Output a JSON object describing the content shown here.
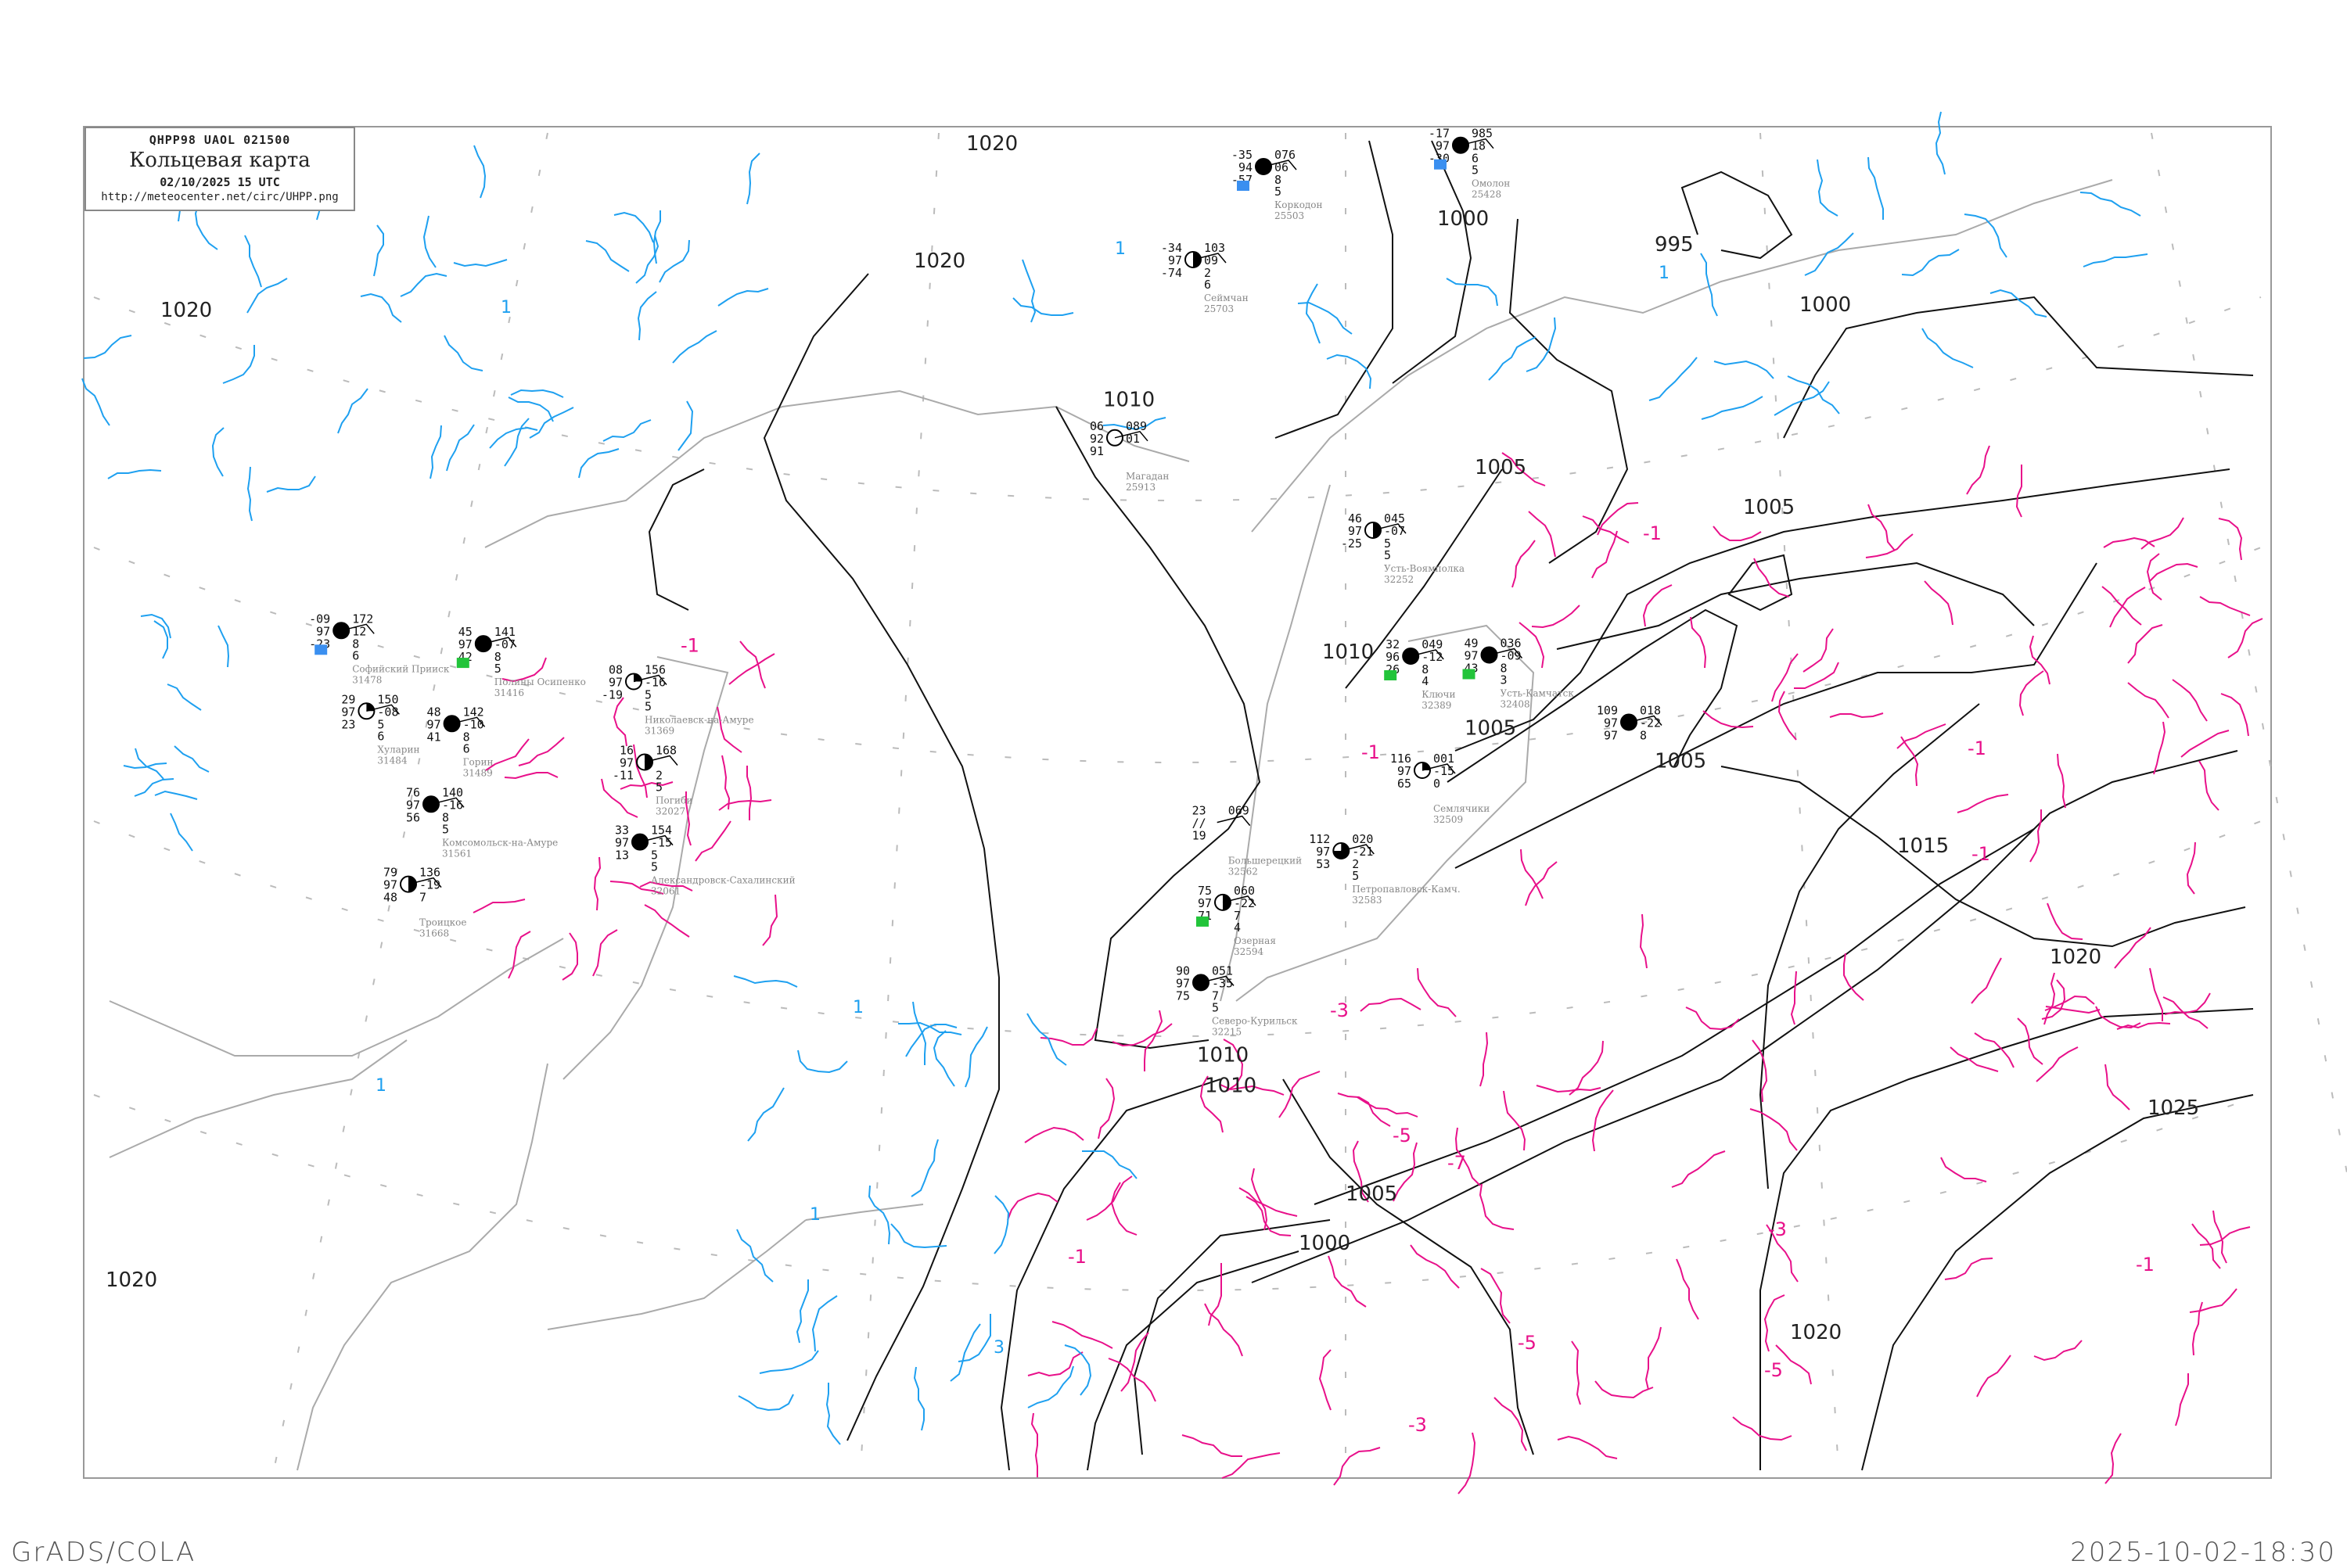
{
  "header": {
    "bulletin_code": "QHPP98  UAOL  021500",
    "title": "Кольцевая карта",
    "datetime": "02/10/2025 15 UTC",
    "url": "http://meteocenter.net/circ/UHPP.png"
  },
  "footer": {
    "software": "GrADS/COLA",
    "timestamp": "2025-10-02-18:30"
  },
  "colors": {
    "isobar": "#000000",
    "temperature_isoline": "#e8108a",
    "positive_isoline": "#1ea0f0",
    "coastline": "#aaaaaa",
    "grid": "#aaaaaa",
    "snow_marker": "#3a8ff0",
    "rain_marker": "#22c43a"
  },
  "isobar_labels": [
    "1020",
    "1020",
    "1020",
    "1010",
    "1010",
    "1010",
    "1010",
    "1000",
    "1000",
    "995",
    "1000",
    "1005",
    "1005",
    "1005",
    "1005",
    "1005",
    "1015",
    "1020",
    "1020",
    "1020",
    "1025"
  ],
  "temperature_labels": [
    "-1",
    "-1",
    "-1",
    "-1",
    "-1",
    "-3",
    "-3",
    "-3",
    "-5",
    "-5",
    "-5",
    "-7",
    "-1",
    "-1"
  ],
  "positive_labels": [
    "1",
    "1",
    "1",
    "1",
    "1",
    "1",
    "3"
  ],
  "stations": [
    {
      "name": "Коркодон",
      "id": "25503",
      "tl": "-35",
      "ml": "94",
      "bl": "-57",
      "tr": "076",
      "mr": "06",
      "b1": "8",
      "b2": "5",
      "cover": "full",
      "marker": "snow"
    },
    {
      "name": "Омолон",
      "id": "25428",
      "tl": "-17",
      "ml": "97",
      "bl": "-30",
      "tr": "985",
      "mr": "18",
      "b1": "6",
      "b2": "5",
      "cover": "full",
      "marker": "snow"
    },
    {
      "name": "Сеймчан",
      "id": "25703",
      "tl": "-34",
      "ml": "97",
      "bl": "-74",
      "tr": "103",
      "mr": "09",
      "b1": "2",
      "b2": "6",
      "cover": "half",
      "marker": ""
    },
    {
      "name": "Магадан",
      "id": "25913",
      "tl": "06",
      "ml": "92",
      "bl": "91",
      "tr": "089",
      "mr": "01",
      "b1": "",
      "b2": "",
      "cover": "empty",
      "marker": ""
    },
    {
      "name": "Усть-Воямполка",
      "id": "32252",
      "tl": "46",
      "ml": "97",
      "bl": "-25",
      "tr": "045",
      "mr": "-07",
      "b1": "5",
      "b2": "5",
      "cover": "half",
      "marker": ""
    },
    {
      "name": "Ключи",
      "id": "32389",
      "tl": "32",
      "ml": "96",
      "bl": "26",
      "tr": "049",
      "mr": "-12",
      "b1": "8",
      "b2": "4",
      "cover": "full",
      "marker": "rain"
    },
    {
      "name": "Усть-Камчатск",
      "id": "32408",
      "tl": "49",
      "ml": "97",
      "bl": "43",
      "tr": "036",
      "mr": "-09",
      "b1": "8",
      "b2": "3",
      "cover": "full",
      "marker": "rain"
    },
    {
      "name": "Софийский Прииск",
      "id": "31478",
      "tl": "-09",
      "ml": "97",
      "bl": "-23",
      "tr": "172",
      "mr": "12",
      "b1": "8",
      "b2": "6",
      "cover": "full",
      "marker": "snow"
    },
    {
      "name": "Полины Осипенко",
      "id": "31416",
      "tl": "45",
      "ml": "97",
      "bl": "42",
      "tr": "141",
      "mr": "-07",
      "b1": "8",
      "b2": "5",
      "cover": "full",
      "marker": "rain"
    },
    {
      "name": "Хуларин",
      "id": "31484",
      "tl": "29",
      "ml": "97",
      "bl": "23",
      "tr": "150",
      "mr": "-08",
      "b1": "5",
      "b2": "6",
      "cover": "quarter",
      "marker": ""
    },
    {
      "name": "Горин",
      "id": "31489",
      "tl": "48",
      "ml": "97",
      "bl": "41",
      "tr": "142",
      "mr": "-10",
      "b1": "8",
      "b2": "6",
      "cover": "full",
      "marker": ""
    },
    {
      "name": "Комсомольск-на-Амуре",
      "id": "31561",
      "tl": "76",
      "ml": "97",
      "bl": "56",
      "tr": "140",
      "mr": "-16",
      "b1": "8",
      "b2": "5",
      "cover": "full",
      "marker": ""
    },
    {
      "name": "Николаевск-на-Амуре",
      "id": "31369",
      "tl": "08",
      "ml": "97",
      "bl": "-19",
      "tr": "156",
      "mr": "-16",
      "b1": "5",
      "b2": "5",
      "cover": "quarter",
      "marker": ""
    },
    {
      "name": "Погиби",
      "id": "32027",
      "tl": "16",
      "ml": "97",
      "bl": "-11",
      "tr": "168",
      "mr": "",
      "b1": "2",
      "b2": "5",
      "cover": "half",
      "marker": ""
    },
    {
      "name": "Александровск-Сахалинский",
      "id": "32061",
      "tl": "33",
      "ml": "97",
      "bl": "13",
      "tr": "154",
      "mr": "-15",
      "b1": "5",
      "b2": "5",
      "cover": "full",
      "marker": ""
    },
    {
      "name": "Троицкое",
      "id": "31668",
      "tl": "79",
      "ml": "97",
      "bl": "48",
      "tr": "136",
      "mr": "-19",
      "b1": "7",
      "b2": "",
      "cover": "half",
      "marker": ""
    },
    {
      "name": "Петропавловск-Камч.",
      "id": "32583",
      "tl": "112",
      "ml": "97",
      "bl": "53",
      "tr": "020",
      "mr": "-21",
      "b1": "2",
      "b2": "5",
      "cover": "threequarter",
      "marker": ""
    },
    {
      "name": "Большерецкий",
      "id": "32562",
      "tl": "23",
      "ml": "//",
      "bl": "19",
      "tr": "069",
      "mr": "",
      "b1": "",
      "b2": "",
      "cover": "none",
      "marker": ""
    },
    {
      "name": "Озерная",
      "id": "32594",
      "tl": "75",
      "ml": "97",
      "bl": "71",
      "tr": "060",
      "mr": "-22",
      "b1": "7",
      "b2": "4",
      "cover": "half",
      "marker": "rain"
    },
    {
      "name": "Северо-Курильск",
      "id": "32215",
      "tl": "90",
      "ml": "97",
      "bl": "75",
      "tr": "051",
      "mr": "-35",
      "b1": "7",
      "b2": "5",
      "cover": "full",
      "marker": ""
    },
    {
      "name": "",
      "id": "",
      "tl": "109",
      "ml": "97",
      "bl": "97",
      "tr": "018",
      "mr": "-22",
      "b1": "8",
      "b2": "",
      "cover": "full",
      "marker": ""
    },
    {
      "name": "Семлячики",
      "id": "32509",
      "tl": "116",
      "ml": "97",
      "bl": "65",
      "tr": "001",
      "mr": "-15",
      "b1": "0",
      "b2": "",
      "cover": "quarter",
      "marker": ""
    }
  ]
}
